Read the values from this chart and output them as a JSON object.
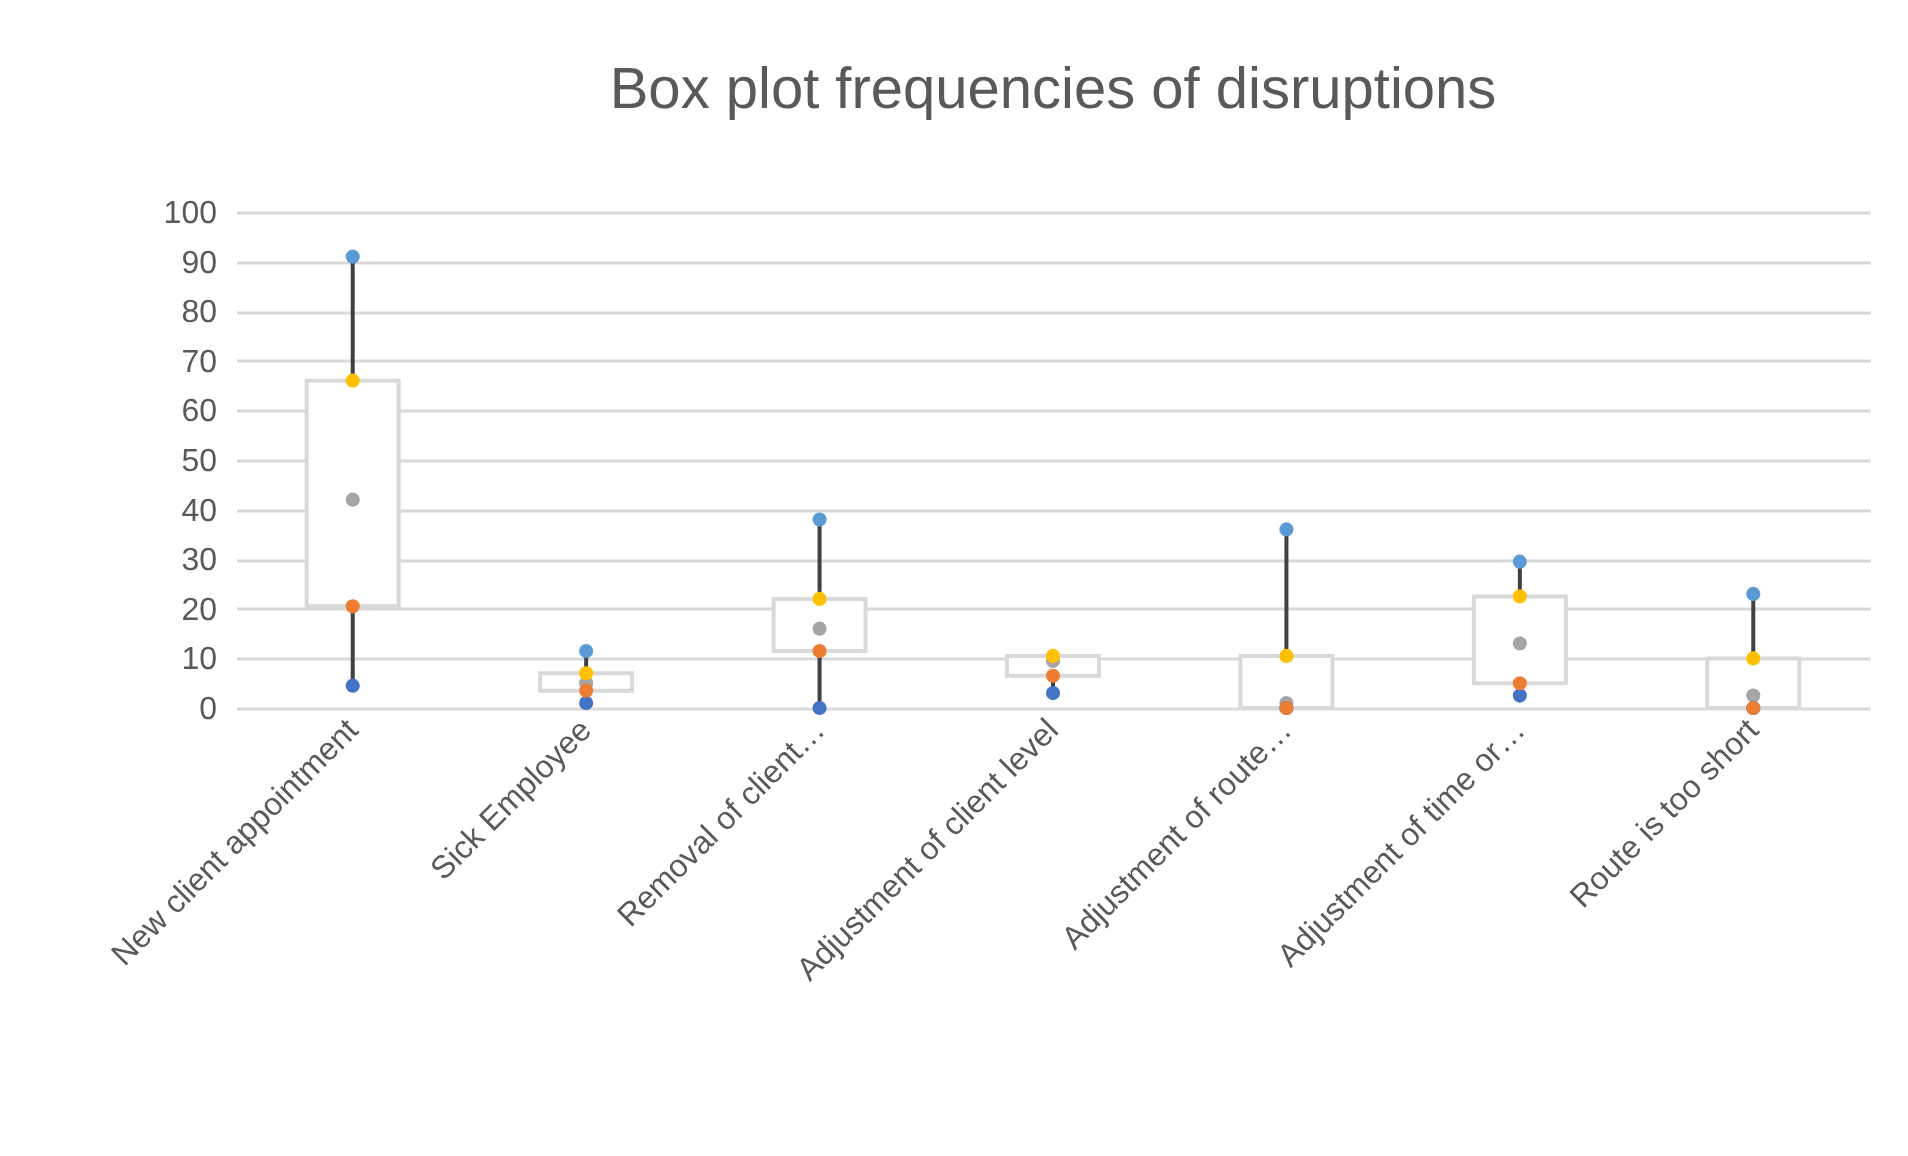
{
  "chart_data": {
    "type": "box",
    "title": "Box plot frequencies of disruptions",
    "categories": [
      "New client appointment",
      "Sick Employee",
      "Removal of client…",
      "Adjustment of client level",
      "Adjustment of route…",
      "Adjustment of time or…",
      "Route is too short"
    ],
    "boxes": [
      {
        "low": 4.5,
        "q1": 20.5,
        "median": 42,
        "q3": 66,
        "high": 91
      },
      {
        "low": 1,
        "q1": 3.5,
        "median": 5,
        "q3": 7,
        "high": 11.5
      },
      {
        "low": 0,
        "q1": 11.5,
        "median": 16,
        "q3": 22,
        "high": 38
      },
      {
        "low": 3,
        "q1": 6.5,
        "median": 9.5,
        "q3": 10.5,
        "high": 10.5
      },
      {
        "low": 0,
        "q1": 0,
        "median": 1,
        "q3": 10.5,
        "high": 36
      },
      {
        "low": 2.5,
        "q1": 5,
        "median": 13,
        "q3": 22.5,
        "high": 29.5
      },
      {
        "low": 0,
        "q1": 0,
        "median": 2.5,
        "q3": 10,
        "high": 23
      }
    ],
    "series": [
      {
        "type": "scatter",
        "color": "#4472c4",
        "values": [
          4.5,
          1,
          0,
          3,
          0,
          2.5,
          0
        ]
      },
      {
        "type": "scatter",
        "color": "#ed7d31",
        "values": [
          20.5,
          3.5,
          11.5,
          6.5,
          0,
          5,
          0
        ]
      },
      {
        "type": "scatter",
        "color": "#ffc000",
        "values": [
          66,
          7,
          22,
          10.5,
          10.5,
          22.5,
          10
        ]
      },
      {
        "type": "scatter",
        "color": "#5b9bd5",
        "values": [
          91,
          11.5,
          38,
          null,
          36,
          29.5,
          23
        ]
      }
    ],
    "color": "#d9d9d9",
    "ylim": [
      0,
      100
    ],
    "yticks": [
      0,
      10,
      20,
      30,
      40,
      50,
      60,
      70,
      80,
      90,
      100
    ],
    "grid": "y",
    "legend": false
  }
}
